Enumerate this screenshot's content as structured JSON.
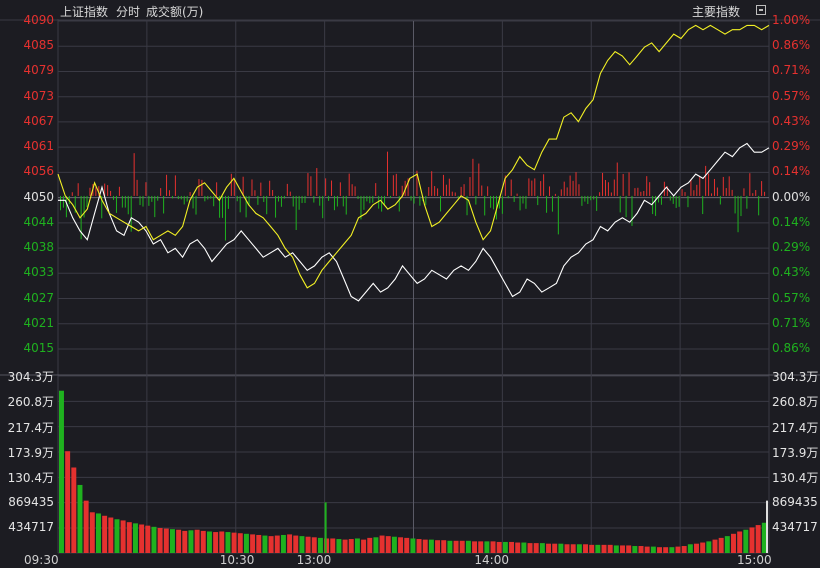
{
  "header": {
    "index_name": "上证指数",
    "view_mode": "分时",
    "indicator": "成交额(万)",
    "main_indicator_button": "主要指数"
  },
  "colors": {
    "background": "#1c1c22",
    "grid": "#3a3a44",
    "up": "#e5312f",
    "down": "#1fb11f",
    "neutral": "#e0e0e0",
    "price_line": "#ffffff",
    "avg_line": "#f2f024"
  },
  "chart_data": {
    "type": "line",
    "price_axis_labels": [
      "4090",
      "4085",
      "4079",
      "4073",
      "4067",
      "4061",
      "4056",
      "4050",
      "4044",
      "4038",
      "4033",
      "4027",
      "4021",
      "4015"
    ],
    "pct_axis_labels": [
      "1.00%",
      "0.86%",
      "0.71%",
      "0.57%",
      "0.43%",
      "0.29%",
      "0.14%",
      "0.00%",
      "0.14%",
      "0.29%",
      "0.43%",
      "0.57%",
      "0.71%",
      "0.86%"
    ],
    "volume_axis_labels": [
      "304.3万",
      "260.8万",
      "217.4万",
      "173.9万",
      "130.4万",
      "869435",
      "434717"
    ],
    "x_tick_labels": [
      "09:30",
      "10:30",
      "13:00",
      "14:00",
      "15:00"
    ],
    "reference_price": 4050,
    "ylim": [
      4015,
      4090
    ],
    "volume_ylim": [
      0,
      3043000
    ],
    "grid": true,
    "series": [
      {
        "name": "",
        "role": "price",
        "values": [
          4049,
          4049,
          4045,
          4042,
          4040,
          4046,
          4052,
          4046,
          4042,
          4041,
          4045,
          4044,
          4042,
          4039,
          4040,
          4037,
          4038,
          4036,
          4039,
          4040,
          4038,
          4035,
          4037,
          4039,
          4040,
          4042,
          4040,
          4038,
          4036,
          4037,
          4038,
          4036,
          4037,
          4035,
          4033,
          4034,
          4036,
          4037,
          4035,
          4031,
          4027,
          4026,
          4028,
          4030,
          4028,
          4029,
          4031,
          4034,
          4032,
          4030,
          4031,
          4033,
          4032,
          4031,
          4033,
          4034,
          4033,
          4035,
          4038,
          4036,
          4033,
          4030,
          4027,
          4028,
          4031,
          4030,
          4028,
          4029,
          4030,
          4034,
          4036,
          4037,
          4039,
          4040,
          4043,
          4042,
          4044,
          4045,
          4044,
          4046,
          4049,
          4048,
          4050,
          4052,
          4050,
          4052,
          4053,
          4055,
          4054,
          4056,
          4058,
          4060,
          4059,
          4061,
          4062,
          4060,
          4060,
          4061
        ]
      },
      {
        "name": "",
        "role": "average",
        "values": [
          4055,
          4050,
          4048,
          4045,
          4047,
          4053,
          4049,
          4046,
          4045,
          4044,
          4043,
          4042,
          4043,
          4040,
          4041,
          4042,
          4041,
          4043,
          4049,
          4052,
          4053,
          4051,
          4049,
          4052,
          4054,
          4051,
          4048,
          4046,
          4045,
          4043,
          4041,
          4038,
          4036,
          4032,
          4029,
          4030,
          4033,
          4035,
          4037,
          4039,
          4041,
          4045,
          4046,
          4048,
          4049,
          4047,
          4048,
          4050,
          4054,
          4055,
          4048,
          4043,
          4044,
          4046,
          4048,
          4050,
          4049,
          4044,
          4040,
          4042,
          4048,
          4054,
          4056,
          4059,
          4057,
          4056,
          4060,
          4063,
          4063,
          4068,
          4069,
          4067,
          4070,
          4072,
          4078,
          4081,
          4083,
          4082,
          4080,
          4082,
          4084,
          4085,
          4083,
          4085,
          4087,
          4086,
          4088,
          4089,
          4088,
          4089,
          4088,
          4087,
          4088,
          4088,
          4089,
          4089,
          4088,
          4089
        ]
      }
    ],
    "volume_values": [
      2790000,
      1750000,
      1470000,
      1170000,
      900000,
      700000,
      680000,
      640000,
      610000,
      580000,
      560000,
      530000,
      510000,
      490000,
      470000,
      450000,
      430000,
      420000,
      410000,
      400000,
      380000,
      390000,
      400000,
      380000,
      370000,
      360000,
      370000,
      360000,
      350000,
      340000,
      330000,
      320000,
      310000,
      300000,
      290000,
      300000,
      310000,
      320000,
      300000,
      290000,
      280000,
      270000,
      260000,
      250000,
      250000,
      240000,
      230000,
      240000,
      250000,
      230000,
      260000,
      270000,
      300000,
      290000,
      280000,
      270000,
      260000,
      250000,
      240000,
      230000,
      230000,
      220000,
      220000,
      210000,
      210000,
      210000,
      210000,
      200000,
      200000,
      200000,
      200000,
      190000,
      190000,
      190000,
      180000,
      180000,
      170000,
      170000,
      170000,
      160000,
      160000,
      160000,
      150000,
      150000,
      150000,
      150000,
      140000,
      140000,
      140000,
      140000,
      130000,
      130000,
      130000,
      120000,
      120000,
      110000,
      110000,
      100000,
      100000,
      100000,
      110000,
      120000,
      150000,
      160000,
      180000,
      200000,
      230000,
      260000,
      290000,
      330000,
      370000,
      400000,
      440000,
      480000,
      520000
    ]
  }
}
